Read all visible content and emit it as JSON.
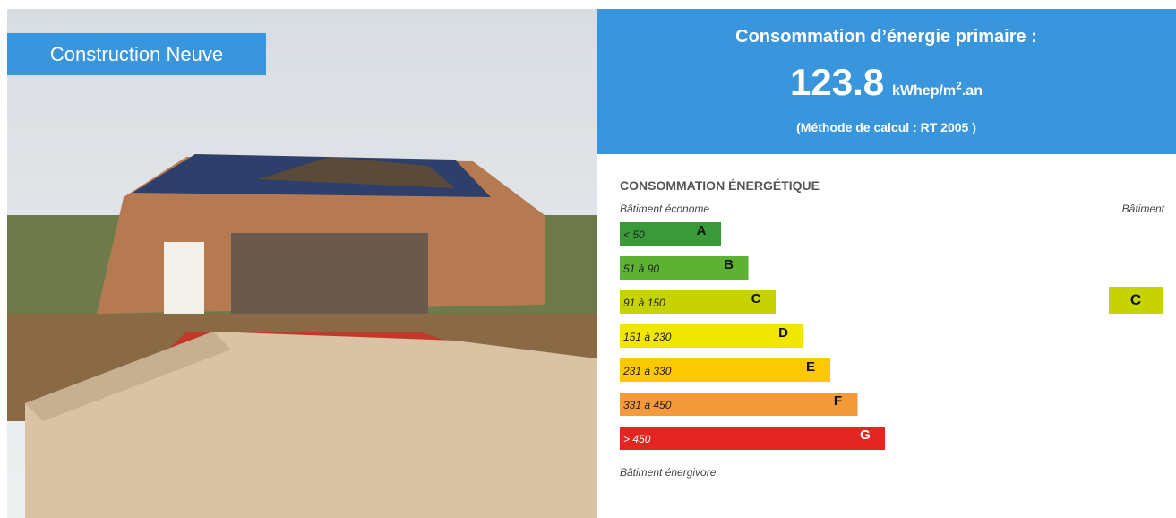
{
  "photo": {
    "badge": "Construction Neuve"
  },
  "summary": {
    "title": "Consommation d’énergie primaire :",
    "value": "123.8",
    "unit": "kWhep/m",
    "unit_sup": "2",
    "unit_end": ".an",
    "method": "(Méthode de calcul : RT 2005 )"
  },
  "label": {
    "title": "CONSOMMATION ÉNERGÉTIQUE",
    "top_left": "Bâtiment économe",
    "top_right": "Bâtiment",
    "bottom": "Bâtiment énergivore",
    "classes": [
      {
        "range": "< 50",
        "letter": "A",
        "color": "#3a9a3a"
      },
      {
        "range": "51 à 90",
        "letter": "B",
        "color": "#5db233"
      },
      {
        "range": "91 à 150",
        "letter": "C",
        "color": "#c7d300"
      },
      {
        "range": "151 à 230",
        "letter": "D",
        "color": "#f1e600"
      },
      {
        "range": "231 à 330",
        "letter": "E",
        "color": "#fcc800"
      },
      {
        "range": "331 à 450",
        "letter": "F",
        "color": "#f39a3b"
      },
      {
        "range": "> 450",
        "letter": "G",
        "color": "#e42521"
      }
    ],
    "current": "C"
  }
}
